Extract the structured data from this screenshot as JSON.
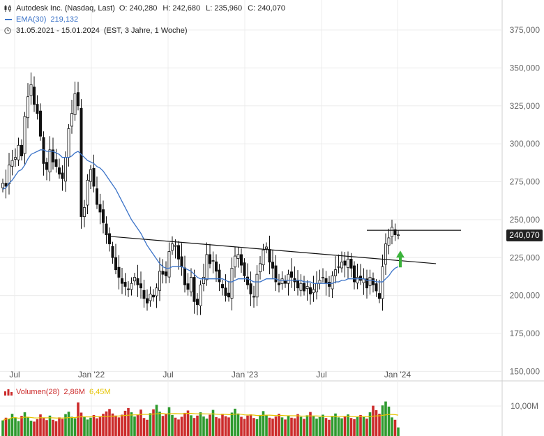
{
  "header": {
    "instrument": "Autodesk Inc. (Nasdaq, Last)",
    "open_label": "O:",
    "open": "240,280",
    "high_label": "H:",
    "high": "242,680",
    "low_label": "L:",
    "low": "235,960",
    "close_label": "C:",
    "close": "240,070",
    "ema_label": "EMA(30)",
    "ema_value": "219,132",
    "range": "31.05.2021 - 15.01.2024",
    "range_info": "(EST, 3 Jahre, 1 Woche)",
    "volume_label": "Volumen(28)",
    "volume_value": "2,86M",
    "volume_avg": "6,45M"
  },
  "last_price_tag": "240,070",
  "colors": {
    "up": "#2e9a2e",
    "down": "#cc2b2b",
    "ema": "#3b73c8",
    "arrow": "#3bb33b",
    "vol_avg": "#e6c300"
  },
  "chart_data": {
    "type": "candlestick",
    "y_axis": {
      "ticks": [
        "375,000",
        "350,000",
        "325,000",
        "300,000",
        "275,000",
        "250,000",
        "225,000",
        "200,000",
        "175,000",
        "150,000"
      ],
      "range": [
        147,
        390
      ]
    },
    "x_axis": {
      "ticks": [
        "Jul",
        "Jan '22",
        "Jul",
        "Jan '23",
        "Jul",
        "Jan '24"
      ]
    },
    "volume_axis": {
      "ticks": [
        "10,00M"
      ]
    },
    "candles_close": [
      274,
      272,
      286,
      289,
      291,
      299,
      292,
      318,
      331,
      339,
      326,
      320,
      305,
      287,
      283,
      296,
      288,
      285,
      280,
      277,
      291,
      310,
      320,
      333,
      325,
      252,
      258,
      276,
      283,
      272,
      260,
      255,
      248,
      240,
      234,
      225,
      217,
      212,
      208,
      206,
      204,
      208,
      212,
      207,
      205,
      198,
      195,
      201,
      199,
      205,
      216,
      214,
      213,
      229,
      234,
      233,
      224,
      219,
      207,
      204,
      212,
      196,
      194,
      207,
      212,
      227,
      221,
      223,
      216,
      209,
      205,
      200,
      199,
      218,
      226,
      227,
      220,
      213,
      207,
      201,
      199,
      214,
      221,
      230,
      232,
      222,
      218,
      209,
      207,
      211,
      208,
      214,
      212,
      209,
      205,
      208,
      203,
      206,
      201,
      204,
      208,
      210,
      212,
      208,
      206,
      213,
      217,
      219,
      222,
      220,
      224,
      218,
      209,
      212,
      210,
      211,
      205,
      212,
      207,
      203,
      198,
      219,
      234,
      238,
      245,
      240,
      240
    ],
    "ema30": [
      270,
      271,
      274,
      276,
      279,
      282,
      283,
      286,
      290,
      293,
      294,
      295,
      296,
      296,
      295,
      295,
      295,
      294,
      293,
      291,
      291,
      291,
      292,
      294,
      295,
      293,
      291,
      289,
      288,
      287,
      285,
      284,
      282,
      279,
      276,
      273,
      270,
      266,
      262,
      258,
      254,
      250,
      247,
      244,
      241,
      237,
      233,
      230,
      227,
      224,
      221,
      219,
      218,
      218,
      219,
      219,
      219,
      219,
      218,
      217,
      216,
      214,
      212,
      211,
      211,
      211,
      211,
      211,
      211,
      211,
      211,
      210,
      209,
      209,
      210,
      211,
      211,
      211,
      211,
      210,
      209,
      209,
      209,
      210,
      211,
      211,
      211,
      211,
      210,
      210,
      210,
      210,
      210,
      210,
      210,
      210,
      209,
      209,
      209,
      208,
      208,
      208,
      208,
      208,
      208,
      208,
      209,
      209,
      210,
      210,
      211,
      211,
      211,
      211,
      211,
      211,
      210,
      210,
      210,
      209,
      209,
      209,
      211,
      213,
      216,
      218,
      219
    ],
    "volume": [
      5.2,
      6.1,
      5.8,
      7.4,
      6.2,
      5.0,
      6.7,
      7.9,
      6.3,
      5.1,
      4.8,
      5.6,
      7.2,
      6.0,
      5.3,
      6.8,
      5.4,
      4.9,
      6.2,
      5.7,
      7.3,
      8.1,
      6.4,
      5.9,
      11.2,
      7.8,
      6.3,
      5.5,
      6.1,
      7.0,
      5.9,
      6.6,
      7.4,
      8.2,
      9.0,
      7.5,
      6.8,
      6.2,
      7.1,
      8.4,
      9.3,
      7.9,
      6.5,
      7.2,
      8.8,
      6.0,
      5.4,
      7.6,
      8.9,
      10.4,
      8.1,
      6.7,
      7.3,
      9.6,
      7.0,
      6.1,
      5.5,
      6.4,
      7.7,
      8.5,
      6.9,
      6.0,
      6.8,
      7.9,
      6.5,
      5.8,
      7.1,
      8.7,
      6.3,
      5.9,
      7.4,
      6.6,
      6.2,
      7.8,
      9.1,
      7.5,
      6.4,
      5.7,
      6.8,
      7.2,
      6.0,
      5.6,
      7.0,
      8.3,
      6.9,
      6.1,
      5.8,
      6.5,
      7.4,
      6.2,
      5.5,
      6.8,
      6.1,
      5.9,
      7.3,
      6.4,
      5.7,
      6.9,
      8.0,
      6.6,
      5.8,
      6.3,
      7.1,
      6.0,
      5.4,
      6.7,
      7.5,
      6.2,
      5.9,
      6.6,
      7.2,
      6.0,
      5.6,
      6.4,
      7.0,
      6.3,
      5.8,
      7.9,
      10.1,
      8.6,
      7.4,
      10.2,
      11.5,
      9.8,
      6.2,
      5.4,
      2.86
    ],
    "trendlines": [
      {
        "from_index": 34,
        "from_value": 239,
        "to_index": 138,
        "to_value": 221
      },
      {
        "from_index": 116,
        "from_value": 243,
        "to_index": 146,
        "to_value": 243
      }
    ]
  }
}
